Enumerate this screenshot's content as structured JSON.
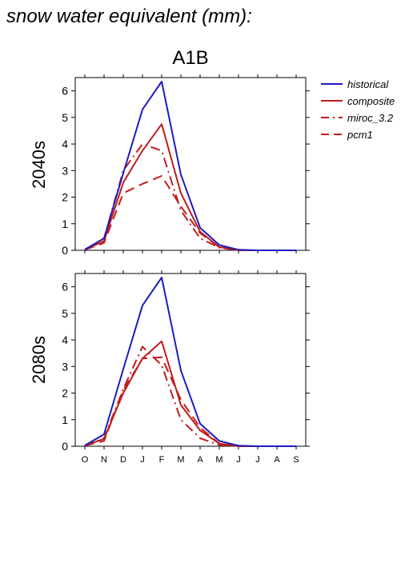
{
  "page": {
    "title": "snow water equivalent (mm):",
    "scenario": "A1B"
  },
  "colors": {
    "historical": "#1c1cbe",
    "projection": "#c01c1c",
    "frame": "#000000"
  },
  "chart_data": [
    {
      "type": "line",
      "row_label": "2040s",
      "categories": [
        "O",
        "N",
        "D",
        "J",
        "F",
        "M",
        "A",
        "M",
        "J",
        "J",
        "A",
        "S"
      ],
      "ylim": [
        0,
        6.5
      ],
      "yticks": [
        0,
        1,
        2,
        3,
        4,
        5,
        6
      ],
      "series": [
        {
          "name": "historical",
          "style": "solid",
          "color_key": "historical",
          "values": [
            0.03,
            0.45,
            2.9,
            5.3,
            6.35,
            2.85,
            0.85,
            0.2,
            0.02,
            0.0,
            0.0,
            0.0
          ]
        },
        {
          "name": "composite",
          "style": "solid",
          "color_key": "projection",
          "values": [
            0.02,
            0.35,
            2.55,
            3.75,
            4.75,
            2.15,
            0.7,
            0.12,
            0.01,
            0.0,
            0.0,
            0.0
          ]
        },
        {
          "name": "miroc_3.2",
          "style": "dashdot",
          "color_key": "projection",
          "values": [
            0.02,
            0.45,
            3.0,
            4.0,
            3.75,
            1.5,
            0.45,
            0.1,
            0.0,
            0.0,
            0.0,
            0.0
          ]
        },
        {
          "name": "pcm1",
          "style": "dash",
          "color_key": "projection",
          "values": [
            0.02,
            0.28,
            2.15,
            2.5,
            2.8,
            1.65,
            0.65,
            0.12,
            0.0,
            0.0,
            0.0,
            0.0
          ]
        }
      ]
    },
    {
      "type": "line",
      "row_label": "2080s",
      "categories": [
        "O",
        "N",
        "D",
        "J",
        "F",
        "M",
        "A",
        "M",
        "J",
        "J",
        "A",
        "S"
      ],
      "ylim": [
        0,
        6.5
      ],
      "yticks": [
        0,
        1,
        2,
        3,
        4,
        5,
        6
      ],
      "series": [
        {
          "name": "historical",
          "style": "solid",
          "color_key": "historical",
          "values": [
            0.03,
            0.45,
            2.9,
            5.3,
            6.35,
            2.85,
            0.85,
            0.2,
            0.02,
            0.0,
            0.0,
            0.0
          ]
        },
        {
          "name": "composite",
          "style": "solid",
          "color_key": "projection",
          "values": [
            0.02,
            0.28,
            2.0,
            3.3,
            3.95,
            1.55,
            0.6,
            0.1,
            0.01,
            0.0,
            0.0,
            0.0
          ]
        },
        {
          "name": "miroc_3.2",
          "style": "dashdot",
          "color_key": "projection",
          "values": [
            0.02,
            0.3,
            2.15,
            3.75,
            3.05,
            1.0,
            0.3,
            0.05,
            0.0,
            0.0,
            0.0,
            0.0
          ]
        },
        {
          "name": "pcm1",
          "style": "dash",
          "color_key": "projection",
          "values": [
            0.02,
            0.2,
            2.1,
            3.3,
            3.35,
            1.75,
            0.7,
            0.1,
            0.0,
            0.0,
            0.0,
            0.0
          ]
        }
      ]
    }
  ],
  "legend": [
    {
      "label": "historical",
      "style": "solid",
      "color_key": "historical"
    },
    {
      "label": "composite",
      "style": "solid",
      "color_key": "projection"
    },
    {
      "label": "miroc_3.2",
      "style": "dashdot",
      "color_key": "projection"
    },
    {
      "label": "pcm1",
      "style": "dash",
      "color_key": "projection"
    }
  ]
}
